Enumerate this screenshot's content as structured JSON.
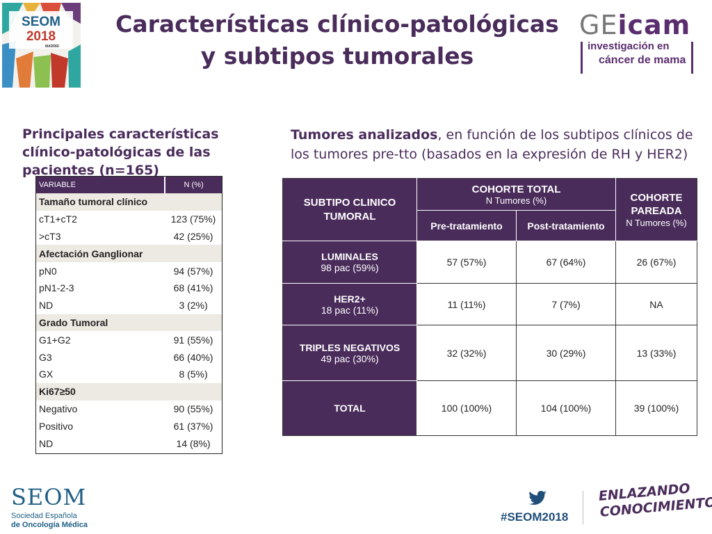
{
  "header": {
    "title_line1": "Características clínico-patológicas",
    "title_line2": "y subtipos tumorales",
    "seom_logo": {
      "word": "SEOM",
      "year": "2018",
      "city": "MADRID"
    },
    "geicam_logo": {
      "word_a": "GE",
      "word_b": "icam",
      "line1": "investigación en",
      "line2": "cáncer de mama"
    }
  },
  "left_section": {
    "heading": "Principales características clínico-patológicas de las pacientes (n=165)",
    "table": {
      "col_variable": "VARIABLE",
      "col_n": "N (%)",
      "rows": [
        {
          "label": "Tamaño tumoral clínico",
          "value": "",
          "group": true
        },
        {
          "label": "cT1+cT2",
          "value": "123 (75%)"
        },
        {
          "label": ">cT3",
          "value": "42 (25%)"
        },
        {
          "label": "Afectación Ganglionar",
          "value": "",
          "group": true
        },
        {
          "label": "pN0",
          "value": "94 (57%)"
        },
        {
          "label": "pN1-2-3",
          "value": "68 (41%)"
        },
        {
          "label": "ND",
          "value": "3 (2%)"
        },
        {
          "label": "Grado Tumoral",
          "value": "",
          "group": true
        },
        {
          "label": "G1+G2",
          "value": "91 (55%)"
        },
        {
          "label": "G3",
          "value": "66 (40%)"
        },
        {
          "label": "GX",
          "value": "8 (5%)"
        },
        {
          "label": "Ki67≥50",
          "value": "",
          "group": true
        },
        {
          "label": "Negativo",
          "value": "90 (55%)"
        },
        {
          "label": "Positivo",
          "value": "61 (37%)"
        },
        {
          "label": "ND",
          "value": "14 (8%)"
        }
      ]
    }
  },
  "right_section": {
    "heading_bold": "Tumores analizados",
    "heading_rest": ", en función de los subtipos clínicos de los tumores pre-tto (basados en la expresión de RH y HER2)",
    "table": {
      "col_subtipo": "SUBTIPO CLINICO TUMORAL",
      "col_total": "COHORTE TOTAL",
      "col_total_sub": "N Tumores (%)",
      "col_pre": "Pre-tratamiento",
      "col_post": "Post-tratamiento",
      "col_pareada": "COHORTE PAREADA",
      "col_pareada_sub": "N Tumores (%)",
      "rows": [
        {
          "name": "LUMINALES",
          "sub": "98 pac (59%)",
          "pre": "57 (57%)",
          "post": "67 (64%)",
          "pareada": "26 (67%)"
        },
        {
          "name": "HER2+",
          "sub": "18 pac (11%)",
          "pre": "11 (11%)",
          "post": "7 (7%)",
          "pareada": "NA"
        },
        {
          "name": "TRIPLES NEGATIVOS",
          "sub": "49 pac (30%)",
          "pre": "32 (32%)",
          "post": "30 (29%)",
          "pareada": "13 (33%)"
        },
        {
          "name": "TOTAL",
          "sub": "",
          "pre": "100 (100%)",
          "post": "104 (100%)",
          "pareada": "39 (100%)"
        }
      ]
    }
  },
  "footer": {
    "seom_word": "SEOM",
    "seom_line1": "Sociedad Española",
    "seom_line2": "de Oncología Médica",
    "hashtag": "#SEOM2018",
    "twitter_icon": "twitter-bird-icon",
    "slogan_line1": "ENLAZANDO",
    "slogan_line2": "CONOCIMIENTO"
  },
  "colors": {
    "primary_purple": "#4a2c5b",
    "group_row_bg": "#ede9e3",
    "seom_blue": "#1f5f86"
  }
}
